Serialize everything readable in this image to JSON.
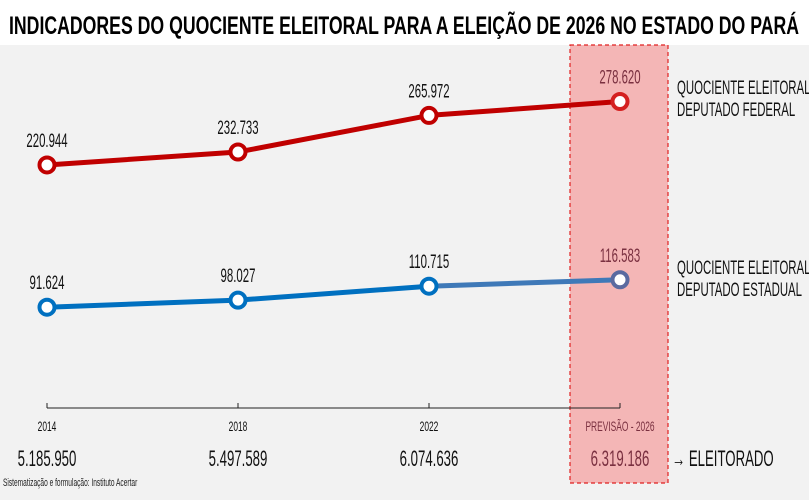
{
  "title": "INDICADORES DO QUOCIENTE ELEITORAL PARA A ELEIÇÃO DE 2026 NO ESTADO DO PARÁ",
  "chart_data": {
    "type": "line",
    "title": "INDICADORES DO QUOCIENTE ELEITORAL PARA A ELEIÇÃO DE 2026 NO ESTADO DO PARÁ",
    "categories": [
      "2014",
      "2018",
      "2022",
      "PREVISÃO - 2026"
    ],
    "series": [
      {
        "name": "QUOCIENTE ELEITORAL DEPUTADO FEDERAL",
        "name_lines": [
          "QUOCIENTE ELEITORAL",
          "DEPUTADO FEDERAL"
        ],
        "values": [
          220944,
          232733,
          265972,
          278620
        ],
        "labels": [
          "220.944",
          "232.733",
          "265.972",
          "278.620"
        ],
        "color": "#c00000"
      },
      {
        "name": "QUOCIENTE ELEITORAL DEPUTADO ESTADUAL",
        "name_lines": [
          "QUOCIENTE ELEITORAL",
          "DEPUTADO ESTADUAL"
        ],
        "values": [
          91624,
          98027,
          110715,
          116583
        ],
        "labels": [
          "91.624",
          "98.027",
          "110.715",
          "116.583"
        ],
        "color": "#0070c0"
      }
    ],
    "electorate": {
      "label": "→ ELEITORADO",
      "values": [
        "5.185.950",
        "5.497.589",
        "6.074.636",
        "6.319.186"
      ]
    },
    "highlight": {
      "category": "PREVISÃO - 2026",
      "color": "#f4b6b6",
      "border": "#e02020"
    },
    "ylim": [
      0,
      330000
    ],
    "grid": false,
    "legend": "right"
  },
  "source": "Sistematização e formulação: Instituto Acertar"
}
